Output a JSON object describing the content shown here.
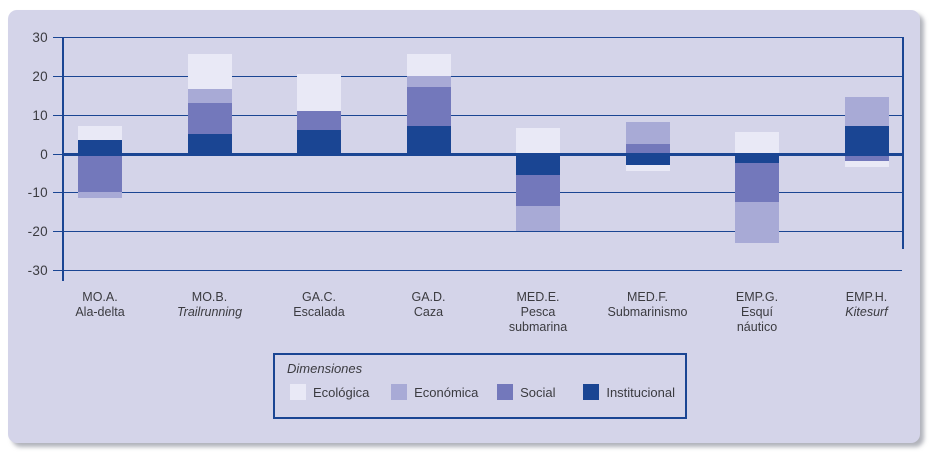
{
  "chart_data": {
    "type": "bar",
    "stacked": true,
    "title": "",
    "legend_title": "Dimensiones",
    "legend_position": "bottom-center",
    "grid": true,
    "ylim": [
      -30,
      30
    ],
    "yticks": [
      30,
      20,
      10,
      0,
      -10,
      -20,
      -30
    ],
    "categories": [
      {
        "code": "MO.A.",
        "name_lines": [
          "Ala-delta"
        ],
        "italic_name": false
      },
      {
        "code": "MO.B.",
        "name_lines": [
          "Trailrunning"
        ],
        "italic_name": true
      },
      {
        "code": "GA.C.",
        "name_lines": [
          "Escalada"
        ],
        "italic_name": false
      },
      {
        "code": "GA.D.",
        "name_lines": [
          "Caza"
        ],
        "italic_name": false
      },
      {
        "code": "MED.E.",
        "name_lines": [
          "Pesca",
          "submarina"
        ],
        "italic_name": false
      },
      {
        "code": "MED.F.",
        "name_lines": [
          "Submarinismo"
        ],
        "italic_name": false
      },
      {
        "code": "EMP.G.",
        "name_lines": [
          "Esquí",
          "náutico"
        ],
        "italic_name": false
      },
      {
        "code": "EMP.H.",
        "name_lines": [
          "Kitesurf"
        ],
        "italic_name": true
      }
    ],
    "series": [
      {
        "name": "Ecológica",
        "color": "#e9e9f6",
        "values": [
          3.5,
          9.0,
          9.5,
          5.5,
          6.5,
          -1.5,
          5.5,
          -1.5
        ]
      },
      {
        "name": "Económica",
        "color": "#a8aad6",
        "values": [
          -1.5,
          3.5,
          0.0,
          3.0,
          -6.5,
          5.5,
          -10.5,
          7.5
        ]
      },
      {
        "name": "Social",
        "color": "#7378bb",
        "values": [
          -10.0,
          8.0,
          5.0,
          10.0,
          -8.0,
          2.5,
          -10.0,
          -2.0
        ]
      },
      {
        "name": "Institucional",
        "color": "#1a4593",
        "values": [
          3.5,
          5.0,
          6.0,
          7.0,
          -5.5,
          -3.0,
          -2.5,
          7.0
        ]
      }
    ],
    "stack_order_from_zero": [
      "Institucional",
      "Social",
      "Económica",
      "Ecológica"
    ],
    "colors": {
      "plot_bg": "#d4d4e9",
      "axis_line": "#1a4593",
      "text": "#3b3b40"
    }
  }
}
